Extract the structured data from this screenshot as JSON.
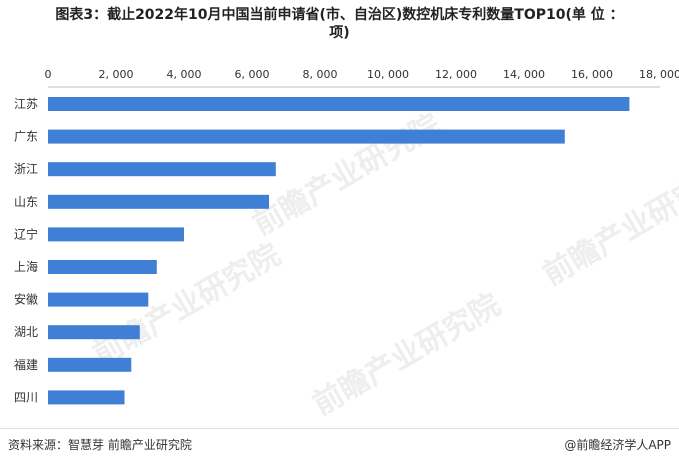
{
  "title": {
    "line1": "图表3：截止2022年10月中国当前申请省(市、自治区)数控机床专利数量TOP10(单 位 ：",
    "line2": "项)"
  },
  "footer": {
    "source": "资料来源：智慧芽 前瞻产业研究院",
    "brand": "@前瞻经济学人APP"
  },
  "watermark": {
    "text": "前瞻产业研究院"
  },
  "colors": {
    "bar": "#3f7fd6",
    "axis": "#bfbfbf",
    "text": "#333333"
  },
  "chart_data": {
    "type": "bar",
    "orientation": "horizontal",
    "categories": [
      "江苏",
      "广东",
      "浙江",
      "山东",
      "辽宁",
      "上海",
      "安徽",
      "湖北",
      "福建",
      "四川"
    ],
    "values": [
      17100,
      15200,
      6700,
      6500,
      4000,
      3200,
      2950,
      2700,
      2450,
      2250
    ],
    "xlim": [
      0,
      18000
    ],
    "xticks": [
      0,
      2000,
      4000,
      6000,
      8000,
      10000,
      12000,
      14000,
      16000,
      18000
    ],
    "xtick_labels": [
      "0",
      "2, 000",
      "4, 000",
      "6, 000",
      "8, 000",
      "10, 000",
      "12, 000",
      "14, 000",
      "16, 000",
      "18, 000"
    ],
    "axis_position": "top",
    "grid": false,
    "legend": "none"
  }
}
